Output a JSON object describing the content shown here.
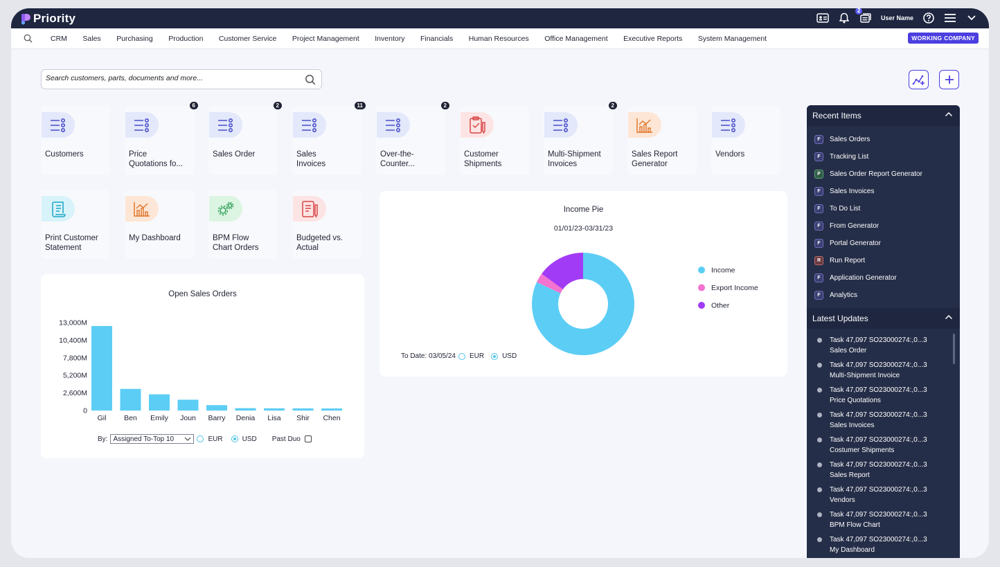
{
  "app": {
    "name": "Priority"
  },
  "topbar": {
    "notifications_badge": "2",
    "user_name": "User Name"
  },
  "menu": {
    "items": [
      "CRM",
      "Sales",
      "Purchasing",
      "Production",
      "Customer Service",
      "Project Management",
      "Inventory",
      "Financials",
      "Human Resources",
      "Office Management",
      "Executive Reports",
      "System Management"
    ],
    "company_button": "WORKING COMPANY"
  },
  "search": {
    "placeholder": "Search customers, parts, documents and more..."
  },
  "tiles": [
    {
      "label": "Customers",
      "badge": "",
      "icon": "list-icon"
    },
    {
      "label": "Price\nQuotations fo...",
      "badge": "6",
      "icon": "list-icon"
    },
    {
      "label": "Sales Order",
      "badge": "2",
      "icon": "list-icon"
    },
    {
      "label": "Sales\nInvoices",
      "badge": "11",
      "icon": "list-icon"
    },
    {
      "label": "Over-the-\nCounter...",
      "badge": "2",
      "icon": "list-icon"
    },
    {
      "label": "Customer\nShipments",
      "badge": "",
      "icon": "clipboard-check-icon"
    },
    {
      "label": "Multi-Shipment\nInvoices",
      "badge": "2",
      "icon": "list-icon"
    },
    {
      "label": "Sales Report\nGenerator",
      "badge": "",
      "icon": "chart-icon"
    },
    {
      "label": "Vendors",
      "badge": "",
      "icon": "list-icon"
    },
    {
      "label": "Print Customer\nStatement",
      "badge": "",
      "icon": "scroll-icon"
    },
    {
      "label": "My Dashboard",
      "badge": "",
      "icon": "chart-icon"
    },
    {
      "label": "BPM Flow\nChart Orders",
      "badge": "",
      "icon": "gears-icon"
    },
    {
      "label": "Budgeted vs.\nActual",
      "badge": "",
      "icon": "document-icon"
    }
  ],
  "bar_card": {
    "by_label": "By:",
    "select_value": "Assigned To-Top 10",
    "radio_eur": "EUR",
    "radio_usd": "USD",
    "checkbox_label": "Past Duo"
  },
  "pie_card": {
    "to_date": "To Date: 03/05/24",
    "radio_eur": "EUR",
    "radio_usd": "USD"
  },
  "chart_data": [
    {
      "type": "bar",
      "title": "Open Sales Orders",
      "categories": [
        "Gil",
        "Ben",
        "Emily",
        "Joun",
        "Barry",
        "Denia",
        "Lisa",
        "Shir",
        "Chen"
      ],
      "values": [
        12500,
        3200,
        2400,
        1600,
        800,
        350,
        330,
        320,
        310
      ],
      "ylim": [
        0,
        13000
      ],
      "yticks": [
        "13,000M",
        "10,400M",
        "7,800M",
        "5,200M",
        "2,600M",
        "0"
      ],
      "unit": "M",
      "color": "#5ccdf5"
    },
    {
      "type": "pie",
      "title": "Income Pie",
      "subtitle": "01/01/23-03/31/23",
      "labels": [
        "Income",
        "Export Income",
        "Other"
      ],
      "values": [
        82,
        3,
        15
      ],
      "colors": [
        "#5ccdf5",
        "#f472d0",
        "#a23bf5"
      ],
      "legend": "right"
    }
  ],
  "recent_items": {
    "title": "Recent Items",
    "items": [
      {
        "type": "F",
        "label": "Sales Orders"
      },
      {
        "type": "F",
        "label": "Tracking List"
      },
      {
        "type": "P",
        "label": "Sales Order Report Generator"
      },
      {
        "type": "F",
        "label": "Sales Invoices"
      },
      {
        "type": "F",
        "label": "To Do List"
      },
      {
        "type": "F",
        "label": "From Generator"
      },
      {
        "type": "F",
        "label": "Portal Generator"
      },
      {
        "type": "R",
        "label": "Run Report"
      },
      {
        "type": "F",
        "label": "Application Generator"
      },
      {
        "type": "F",
        "label": "Analytics"
      }
    ]
  },
  "latest_updates": {
    "title": "Latest Updates",
    "items": [
      {
        "task": "Task 47,097 SO23000274:,0...3",
        "doc": "Sales Order"
      },
      {
        "task": "Task 47,097 SO23000274:,0...3",
        "doc": "Multi-Shipment Invoice"
      },
      {
        "task": "Task 47,097 SO23000274:,0...3",
        "doc": "Price Quotations"
      },
      {
        "task": "Task 47,097 SO23000274:,0...3",
        "doc": "Sales Invoices"
      },
      {
        "task": "Task 47,097 SO23000274:,0...3",
        "doc": "Costumer Shipments"
      },
      {
        "task": "Task 47,097 SO23000274:,0...3",
        "doc": "Sales Report"
      },
      {
        "task": "Task 47,097 SO23000274:,0...3",
        "doc": "Vendors"
      },
      {
        "task": "Task 47,097 SO23000274:,0...3",
        "doc": "BPM Flow Chart"
      },
      {
        "task": "Task 47,097 SO23000274:,0...3",
        "doc": "My Dashboard"
      }
    ]
  }
}
